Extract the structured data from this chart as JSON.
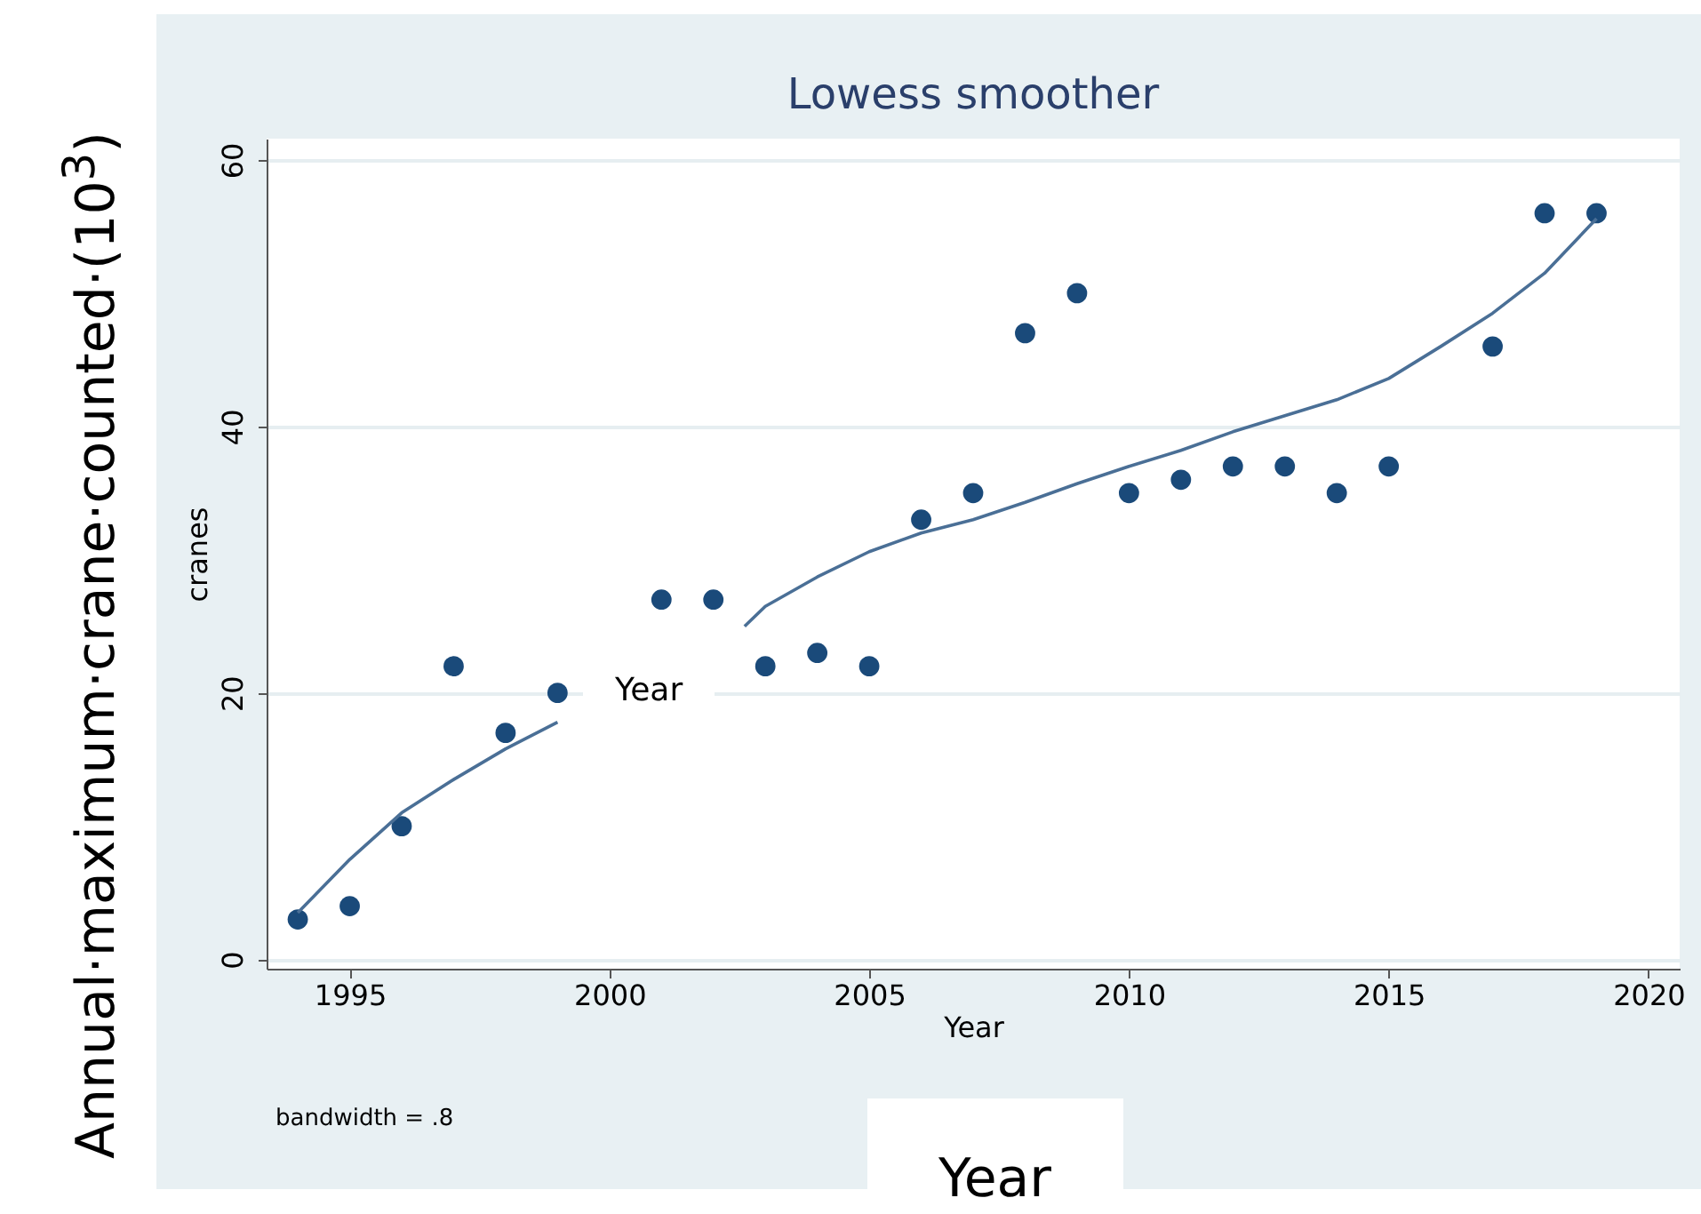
{
  "chart_data": {
    "type": "scatter",
    "title": "Lowess smoother",
    "xlabel": "Year",
    "ylabel": "cranes",
    "annotations": [
      "bandwidth = .8",
      "Year",
      "Annual·maximum·crane·counted·(10$^{3}$)",
      "Year"
    ],
    "xlim": [
      1993.4,
      2020.6
    ],
    "xticks": [
      1995,
      2000,
      2005,
      2010,
      2015,
      2020
    ],
    "ylim": [
      -0.7,
      61.6
    ],
    "yticks": [
      0,
      20,
      40,
      60
    ],
    "grid": "y",
    "marker": "circle",
    "series": [
      {
        "color": "#1a4a7a",
        "x": [
          1994,
          1995,
          1996,
          1997,
          1998,
          1999,
          2001,
          2002,
          2003,
          2004,
          2005,
          2006,
          2007,
          2008,
          2009,
          2010,
          2011,
          2012,
          2013,
          2014,
          2015,
          2017,
          2018,
          2019
        ],
        "values": [
          3,
          4,
          10,
          22,
          17,
          20,
          27,
          27,
          22,
          23,
          22,
          33,
          35,
          47,
          50,
          35,
          36,
          37,
          37,
          35,
          37,
          46,
          56,
          56
        ]
      },
      {
        "type": "line",
        "marker": "none",
        "color": "#4a6f96",
        "x": [
          1994,
          1995,
          1996,
          1997,
          1998,
          1999,
          2000,
          2002.6,
          2003,
          2004,
          2005,
          2006,
          2007,
          2008,
          2009,
          2010,
          2011,
          2012,
          2013,
          2014,
          2015,
          2016,
          2017,
          2018,
          2019
        ],
        "values": [
          3.5,
          7.5,
          11,
          13.5,
          15.8,
          17.8,
          null,
          25,
          26.5,
          28.7,
          30.6,
          32,
          33,
          34.3,
          35.7,
          37,
          38.2,
          39.6,
          40.8,
          42,
          43.6,
          46,
          48.5,
          51.5,
          55.6
        ]
      }
    ]
  }
}
